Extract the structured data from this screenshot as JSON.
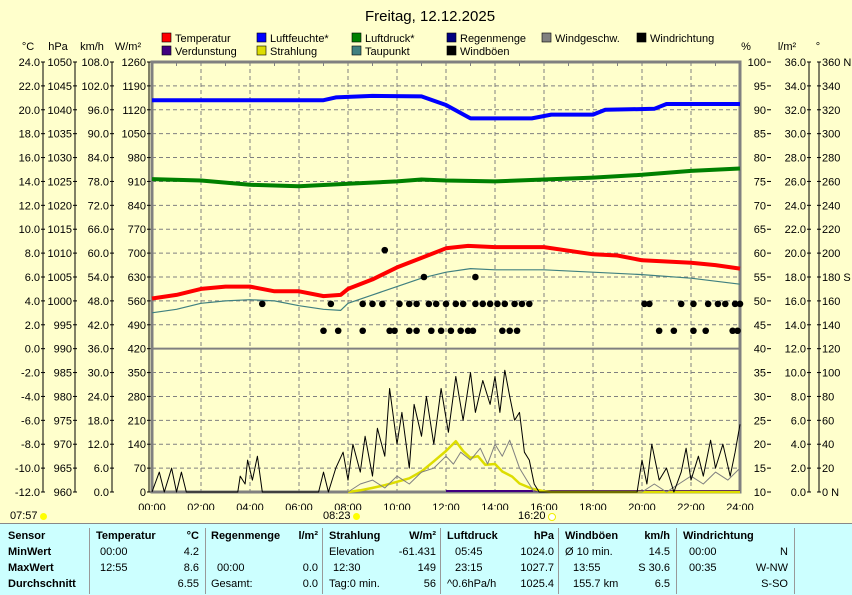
{
  "chart_data": {
    "type": "line",
    "title": "Freitag, 12.12.2025",
    "legend": [
      {
        "label": "Temperatur",
        "color": "#ff0000"
      },
      {
        "label": "Luftfeuchte*",
        "color": "#0000ff"
      },
      {
        "label": "Luftdruck*",
        "color": "#008000"
      },
      {
        "label": "Regenmenge",
        "color": "#000080"
      },
      {
        "label": "Windgeschw.",
        "color": "#808080"
      },
      {
        "label": "Windrichtung",
        "color": "#000000"
      },
      {
        "label": "Verdunstung",
        "color": "#400080"
      },
      {
        "label": "Strahlung",
        "color": "#dddd00"
      },
      {
        "label": "Taupunkt",
        "color": "#408080"
      },
      {
        "label": "Windböen",
        "color": "#000000"
      }
    ],
    "axis_units": {
      "c": "°C",
      "hpa": "hPa",
      "kmh": "km/h",
      "wm2": "W/m²",
      "pct": "%",
      "lm2": "l/m²",
      "deg": "°"
    },
    "axes": {
      "c": [
        "24.0",
        "22.0",
        "20.0",
        "18.0",
        "16.0",
        "14.0",
        "12.0",
        "10.0",
        "8.0",
        "6.0",
        "4.0",
        "2.0",
        "0.0",
        "-2.0",
        "-4.0",
        "-6.0",
        "-8.0",
        "-10.0",
        "-12.0"
      ],
      "hpa": [
        "1050",
        "1045",
        "1040",
        "1035",
        "1030",
        "1025",
        "1020",
        "1015",
        "1010",
        "1005",
        "1000",
        "995",
        "990",
        "985",
        "980",
        "975",
        "970",
        "965",
        "960"
      ],
      "kmh": [
        "108.0",
        "102.0",
        "96.0",
        "90.0",
        "84.0",
        "78.0",
        "72.0",
        "66.0",
        "60.0",
        "54.0",
        "48.0",
        "42.0",
        "36.0",
        "30.0",
        "24.0",
        "18.0",
        "12.0",
        "6.0",
        "0.0"
      ],
      "wm2": [
        "1260",
        "1190",
        "1120",
        "1050",
        "980",
        "910",
        "840",
        "770",
        "700",
        "630",
        "560",
        "490",
        "420",
        "350",
        "280",
        "210",
        "140",
        "70",
        "0"
      ],
      "pct": [
        "100",
        "95",
        "90",
        "85",
        "80",
        "75",
        "70",
        "65",
        "60",
        "55",
        "50",
        "45",
        "40",
        "35",
        "30",
        "25",
        "20",
        "15",
        "10"
      ],
      "lm2": [
        "36.0",
        "34.0",
        "32.0",
        "30.0",
        "28.0",
        "26.0",
        "24.0",
        "22.0",
        "20.0",
        "18.0",
        "16.0",
        "14.0",
        "12.0",
        "10.0",
        "8.0",
        "6.0",
        "4.0",
        "2.0",
        "0.0"
      ],
      "deg": [
        "360 N",
        "340",
        "320",
        "300",
        "280",
        "260",
        "240",
        "220",
        "200",
        "180 S",
        "160",
        "140",
        "120",
        "100",
        "80",
        "60",
        "40",
        "20",
        "0 N"
      ]
    },
    "x_ticks": [
      "00:00",
      "02:00",
      "04:00",
      "06:00",
      "08:00",
      "10:00",
      "12:00",
      "14:00",
      "16:00",
      "18:00",
      "20:00",
      "22:00",
      "24:00"
    ],
    "series": {
      "humidity": [
        [
          0,
          92
        ],
        [
          7,
          92
        ],
        [
          7.5,
          92.6
        ],
        [
          9,
          92.9
        ],
        [
          11,
          92.8
        ],
        [
          12,
          91
        ],
        [
          13,
          88.2
        ],
        [
          15.5,
          88.2
        ],
        [
          16.3,
          89
        ],
        [
          18,
          89
        ],
        [
          18.5,
          90
        ],
        [
          20.5,
          90.2
        ],
        [
          21,
          91.2
        ],
        [
          24,
          91.2
        ]
      ],
      "pressure": [
        [
          0,
          1025.5
        ],
        [
          2,
          1025.2
        ],
        [
          4,
          1024.3
        ],
        [
          6,
          1024
        ],
        [
          8,
          1024.5
        ],
        [
          10,
          1025
        ],
        [
          11,
          1025.4
        ],
        [
          12,
          1025.2
        ],
        [
          14,
          1025
        ],
        [
          16,
          1025.4
        ],
        [
          18,
          1025.8
        ],
        [
          20,
          1026.4
        ],
        [
          22,
          1027.2
        ],
        [
          24,
          1027.7
        ]
      ],
      "temperature": [
        [
          0,
          4.2
        ],
        [
          1,
          4.5
        ],
        [
          2,
          5.0
        ],
        [
          3,
          5.2
        ],
        [
          4,
          5.2
        ],
        [
          5,
          4.8
        ],
        [
          6,
          4.8
        ],
        [
          7,
          4.4
        ],
        [
          7.7,
          4.5
        ],
        [
          8,
          5.0
        ],
        [
          9,
          5.8
        ],
        [
          10,
          6.8
        ],
        [
          11,
          7.6
        ],
        [
          12,
          8.4
        ],
        [
          12.9,
          8.6
        ],
        [
          14,
          8.5
        ],
        [
          16,
          8.5
        ],
        [
          17,
          8.2
        ],
        [
          18,
          7.9
        ],
        [
          19,
          7.8
        ],
        [
          20,
          7.4
        ],
        [
          21,
          7.3
        ],
        [
          22,
          7.2
        ],
        [
          23,
          7.0
        ],
        [
          24,
          6.7
        ]
      ],
      "dewpoint": [
        [
          0,
          3.0
        ],
        [
          1,
          3.3
        ],
        [
          2,
          3.8
        ],
        [
          3,
          4.0
        ],
        [
          4,
          4.1
        ],
        [
          5,
          4.0
        ],
        [
          6,
          3.6
        ],
        [
          7,
          3.3
        ],
        [
          7.7,
          3.2
        ],
        [
          8,
          3.8
        ],
        [
          9,
          4.5
        ],
        [
          10,
          5.2
        ],
        [
          11,
          5.9
        ],
        [
          12,
          6.4
        ],
        [
          13,
          6.7
        ],
        [
          14,
          6.6
        ],
        [
          16,
          6.6
        ],
        [
          18,
          6.4
        ],
        [
          20,
          6.2
        ],
        [
          22,
          5.9
        ],
        [
          24,
          5.4
        ]
      ],
      "gusts": [
        [
          0,
          0
        ],
        [
          0.3,
          5
        ],
        [
          0.5,
          0
        ],
        [
          0.8,
          6
        ],
        [
          1,
          0
        ],
        [
          1.2,
          5
        ],
        [
          1.4,
          0
        ],
        [
          3.5,
          0
        ],
        [
          3.6,
          4
        ],
        [
          3.8,
          2
        ],
        [
          3.9,
          8
        ],
        [
          4.1,
          3
        ],
        [
          4.3,
          9
        ],
        [
          4.5,
          0
        ],
        [
          6.8,
          0
        ],
        [
          7,
          5
        ],
        [
          7.2,
          0
        ],
        [
          7.5,
          6
        ],
        [
          7.8,
          10
        ],
        [
          8,
          3
        ],
        [
          8.2,
          12
        ],
        [
          8.5,
          5
        ],
        [
          8.7,
          14
        ],
        [
          9,
          4
        ],
        [
          9.2,
          16
        ],
        [
          9.5,
          9
        ],
        [
          9.7,
          26
        ],
        [
          10,
          12
        ],
        [
          10.2,
          20
        ],
        [
          10.5,
          6
        ],
        [
          10.7,
          22
        ],
        [
          11,
          14
        ],
        [
          11.2,
          24
        ],
        [
          11.5,
          12
        ],
        [
          11.8,
          26
        ],
        [
          12.1,
          15
        ],
        [
          12.4,
          29
        ],
        [
          12.7,
          18
        ],
        [
          13,
          30
        ],
        [
          13.2,
          20
        ],
        [
          13.5,
          28
        ],
        [
          13.8,
          22
        ],
        [
          14,
          29
        ],
        [
          14.2,
          20
        ],
        [
          14.4,
          30.6
        ],
        [
          14.6,
          24
        ],
        [
          14.8,
          18
        ],
        [
          15,
          20
        ],
        [
          15.2,
          10
        ],
        [
          15.4,
          8
        ],
        [
          15.6,
          2
        ],
        [
          15.8,
          0
        ],
        [
          19.8,
          0
        ],
        [
          20,
          8
        ],
        [
          20.2,
          2
        ],
        [
          20.4,
          12
        ],
        [
          20.7,
          3
        ],
        [
          21,
          6
        ],
        [
          21.3,
          0
        ],
        [
          21.6,
          5
        ],
        [
          21.8,
          11
        ],
        [
          22,
          3
        ],
        [
          22.3,
          9
        ],
        [
          22.5,
          4
        ],
        [
          22.8,
          13
        ],
        [
          23,
          6
        ],
        [
          23.3,
          12
        ],
        [
          23.6,
          4
        ],
        [
          23.8,
          10
        ],
        [
          24,
          17
        ]
      ],
      "windspeed": [
        [
          0,
          0
        ],
        [
          8,
          0
        ],
        [
          8.5,
          2
        ],
        [
          9,
          3
        ],
        [
          9.5,
          1
        ],
        [
          10,
          4
        ],
        [
          10.5,
          2
        ],
        [
          11,
          5
        ],
        [
          11.5,
          6
        ],
        [
          12,
          9
        ],
        [
          12.3,
          7
        ],
        [
          12.6,
          10
        ],
        [
          13,
          8
        ],
        [
          13.4,
          11
        ],
        [
          13.7,
          7
        ],
        [
          14,
          12
        ],
        [
          14.3,
          9
        ],
        [
          14.6,
          13
        ],
        [
          15,
          6
        ],
        [
          15.3,
          3
        ],
        [
          15.6,
          0
        ],
        [
          20,
          0
        ],
        [
          20.5,
          2
        ],
        [
          21,
          0
        ],
        [
          21.5,
          2
        ],
        [
          22,
          4
        ],
        [
          22.5,
          2
        ],
        [
          23,
          5
        ],
        [
          23.5,
          3
        ],
        [
          24,
          6
        ]
      ],
      "radiation": [
        [
          8,
          0
        ],
        [
          8.5,
          5
        ],
        [
          9,
          12
        ],
        [
          9.5,
          20
        ],
        [
          10,
          30
        ],
        [
          10.5,
          40
        ],
        [
          11,
          60
        ],
        [
          11.5,
          90
        ],
        [
          12,
          120
        ],
        [
          12.4,
          149
        ],
        [
          12.7,
          120
        ],
        [
          13,
          100
        ],
        [
          13.3,
          105
        ],
        [
          13.6,
          80
        ],
        [
          14,
          82
        ],
        [
          14.3,
          60
        ],
        [
          14.7,
          45
        ],
        [
          15,
          25
        ],
        [
          15.5,
          10
        ],
        [
          16,
          2
        ],
        [
          16.3,
          0
        ],
        [
          24,
          0
        ]
      ],
      "winddir": [
        [
          4.5,
          157.5
        ],
        [
          7.3,
          157.5
        ],
        [
          8.6,
          157.5
        ],
        [
          9.0,
          157.5
        ],
        [
          9.4,
          157.5
        ],
        [
          10.1,
          157.5
        ],
        [
          10.5,
          157.5
        ],
        [
          10.8,
          157.5
        ],
        [
          11.3,
          157.5
        ],
        [
          11.6,
          157.5
        ],
        [
          12.0,
          157.5
        ],
        [
          12.4,
          157.5
        ],
        [
          12.7,
          157.5
        ],
        [
          13.2,
          157.5
        ],
        [
          13.5,
          157.5
        ],
        [
          13.8,
          157.5
        ],
        [
          14.1,
          157.5
        ],
        [
          14.4,
          157.5
        ],
        [
          14.8,
          157.5
        ],
        [
          15.1,
          157.5
        ],
        [
          15.4,
          157.5
        ],
        [
          20.1,
          157.5
        ],
        [
          20.3,
          157.5
        ],
        [
          21.6,
          157.5
        ],
        [
          22.1,
          157.5
        ],
        [
          22.7,
          157.5
        ],
        [
          23.1,
          157.5
        ],
        [
          23.4,
          157.5
        ],
        [
          23.8,
          157.5
        ],
        [
          24.0,
          157.5
        ],
        [
          7.0,
          135
        ],
        [
          7.6,
          135
        ],
        [
          8.6,
          135
        ],
        [
          9.7,
          135
        ],
        [
          9.9,
          135
        ],
        [
          10.5,
          135
        ],
        [
          10.8,
          135
        ],
        [
          11.4,
          135
        ],
        [
          11.8,
          135
        ],
        [
          12.2,
          135
        ],
        [
          12.6,
          135
        ],
        [
          12.9,
          135
        ],
        [
          13.1,
          135
        ],
        [
          14.3,
          135
        ],
        [
          14.6,
          135
        ],
        [
          14.9,
          135
        ],
        [
          20.7,
          135
        ],
        [
          21.3,
          135
        ],
        [
          22.1,
          135
        ],
        [
          22.6,
          135
        ],
        [
          23.7,
          135
        ],
        [
          23.9,
          135
        ],
        [
          9.5,
          202.5
        ],
        [
          11.1,
          180
        ],
        [
          13.2,
          180
        ]
      ]
    }
  },
  "sun": {
    "sunrise": "07:57",
    "noon": "08:23",
    "sunset": "16:20"
  },
  "table": {
    "sensor": [
      "Sensor",
      "MinWert",
      "MaxWert",
      "Durchschnitt"
    ],
    "temp": {
      "h": "Temperatur",
      "u": "°C",
      "min_t": "00:00",
      "min": "4.2",
      "max_t": "12:55",
      "max": "8.6",
      "avg": "6.55"
    },
    "rain": {
      "h": "Regenmenge",
      "u": "l/m²",
      "max_t": "00:00",
      "max": "0.0",
      "tot_l": "Gesamt:",
      "tot": "0.0"
    },
    "rad": {
      "h": "Strahlung",
      "u": "W/m²",
      "el_l": "Elevation",
      "el": "-61.431",
      "max_t": "12:30",
      "max": "149",
      "day_l": "Tag:0 min.",
      "avg": "56"
    },
    "press": {
      "h": "Luftdruck",
      "u": "hPa",
      "min_t": "05:45",
      "min": "1024.0",
      "max_t": "23:15",
      "max": "1027.7",
      "tr": "^0.6hPa/h",
      "avg": "1025.4"
    },
    "gust": {
      "h": "Windböen",
      "u": "km/h",
      "a_l": "Ø 10 min.",
      "a": "14.5",
      "max_t": "13:55",
      "max": "S 30.6",
      "dist": "155.7 km",
      "avg": "6.5"
    },
    "dir": {
      "h": "Windrichtung",
      "min_t": "00:00",
      "min": "N",
      "max_t": "00:35",
      "max": "W-NW",
      "avg": "S-SO"
    }
  }
}
